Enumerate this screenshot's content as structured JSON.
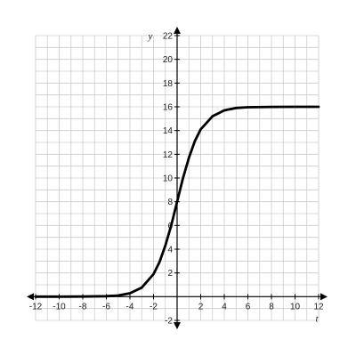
{
  "chart_data": {
    "type": "line",
    "xlabel": "t",
    "ylabel": "y",
    "xlim": [
      -12,
      12
    ],
    "ylim": [
      -2,
      22
    ],
    "x_ticks": [
      -12,
      -10,
      -8,
      -6,
      -4,
      -2,
      2,
      4,
      6,
      8,
      10,
      12
    ],
    "y_ticks": [
      -2,
      2,
      4,
      6,
      8,
      10,
      12,
      14,
      16,
      18,
      20,
      22
    ],
    "grid": true,
    "grid_step": 1,
    "series": [
      {
        "x": [
          -12,
          -10,
          -8,
          -6,
          -5,
          -4,
          -3,
          -2,
          -1.5,
          -1,
          -0.5,
          0,
          0.5,
          1,
          1.5,
          2,
          3,
          4,
          5,
          6,
          8,
          10,
          12
        ],
        "y": [
          0,
          0,
          0.01,
          0.04,
          0.1,
          0.29,
          0.76,
          1.9,
          2.9,
          4.3,
          6.0,
          8.0,
          10.0,
          11.7,
          13.1,
          14.1,
          15.2,
          15.7,
          15.9,
          15.96,
          15.99,
          16.0,
          16.0
        ]
      }
    ],
    "colors": {
      "curve": "#000000",
      "grid": "#cccccc",
      "axes": "#000000"
    }
  }
}
